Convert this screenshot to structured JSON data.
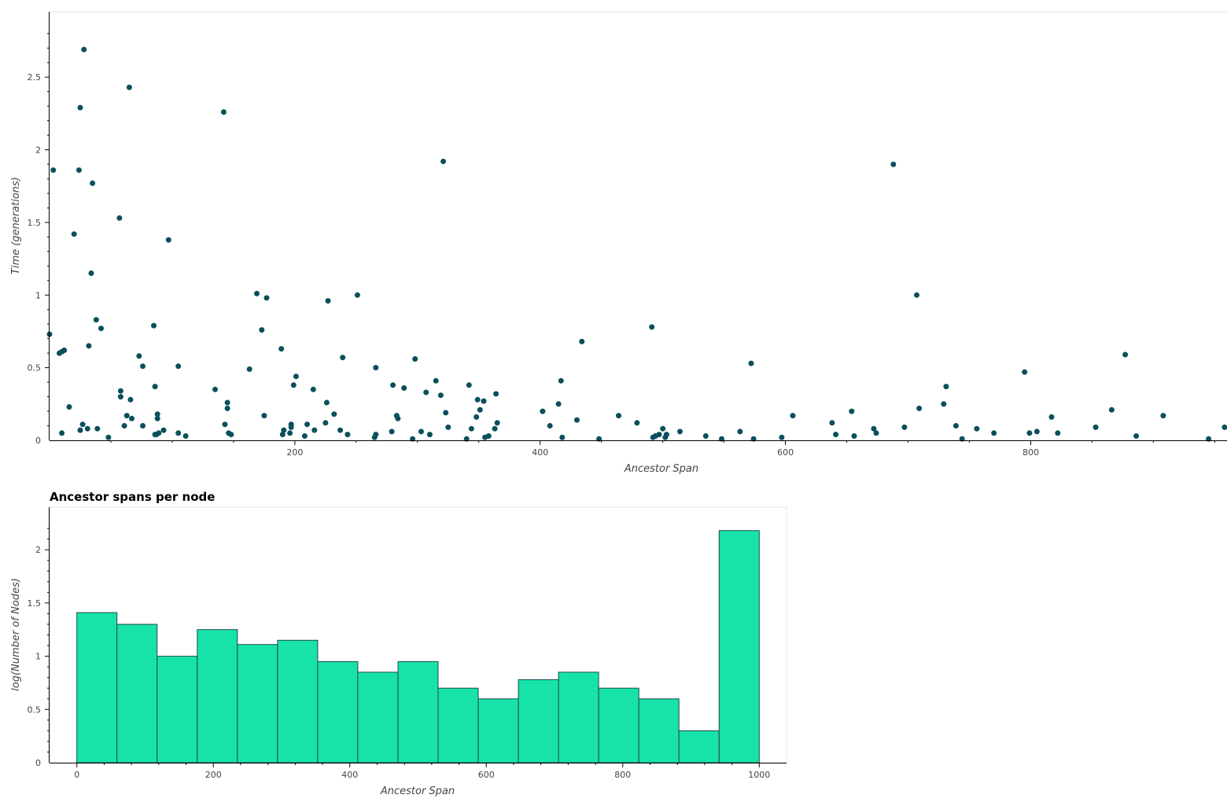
{
  "chart_data": [
    {
      "type": "scatter",
      "title": "",
      "xlabel": "Ancestor Span",
      "ylabel": "Time (generations)",
      "xlim": [
        0,
        960
      ],
      "ylim": [
        0,
        2.95
      ],
      "x_ticks": [
        200,
        400,
        600,
        800
      ],
      "y_ticks": [
        0,
        0.5,
        1,
        1.5,
        2,
        2.5
      ],
      "x_tick_labels": [
        "200",
        "400",
        "600",
        "800"
      ],
      "y_tick_labels": [
        "0",
        "0.5",
        "1",
        "1.5",
        "2",
        "2.5"
      ],
      "grid": false,
      "color": "#0b4f5c",
      "points": [
        [
          0,
          0.73
        ],
        [
          3,
          1.86
        ],
        [
          8,
          0.6
        ],
        [
          10,
          0.61
        ],
        [
          12,
          0.62
        ],
        [
          10,
          0.05
        ],
        [
          16,
          0.23
        ],
        [
          20,
          1.42
        ],
        [
          24,
          1.86
        ],
        [
          25,
          2.29
        ],
        [
          28,
          2.69
        ],
        [
          25,
          0.07
        ],
        [
          27,
          0.11
        ],
        [
          31,
          0.08
        ],
        [
          32,
          0.65
        ],
        [
          35,
          1.77
        ],
        [
          34,
          1.15
        ],
        [
          38,
          0.83
        ],
        [
          39,
          0.08
        ],
        [
          42,
          0.77
        ],
        [
          48,
          0.02
        ],
        [
          57,
          1.53
        ],
        [
          58,
          0.34
        ],
        [
          58,
          0.3
        ],
        [
          61,
          0.1
        ],
        [
          63,
          0.17
        ],
        [
          65,
          2.43
        ],
        [
          66,
          0.28
        ],
        [
          67,
          0.15
        ],
        [
          73,
          0.58
        ],
        [
          76,
          0.51
        ],
        [
          76,
          0.1
        ],
        [
          85,
          0.79
        ],
        [
          86,
          0.37
        ],
        [
          88,
          0.18
        ],
        [
          88,
          0.15
        ],
        [
          86,
          0.04
        ],
        [
          87,
          0.04
        ],
        [
          89,
          0.05
        ],
        [
          93,
          0.07
        ],
        [
          97,
          1.38
        ],
        [
          105,
          0.51
        ],
        [
          105,
          0.05
        ],
        [
          111,
          0.03
        ],
        [
          135,
          0.35
        ],
        [
          142,
          2.26
        ],
        [
          143,
          0.11
        ],
        [
          145,
          0.26
        ],
        [
          145,
          0.22
        ],
        [
          146,
          0.05
        ],
        [
          148,
          0.04
        ],
        [
          163,
          0.49
        ],
        [
          169,
          1.01
        ],
        [
          173,
          0.76
        ],
        [
          175,
          0.17
        ],
        [
          177,
          0.98
        ],
        [
          189,
          0.63
        ],
        [
          190,
          0.04
        ],
        [
          191,
          0.07
        ],
        [
          197,
          0.11
        ],
        [
          196,
          0.05
        ],
        [
          197,
          0.09
        ],
        [
          199,
          0.38
        ],
        [
          201,
          0.44
        ],
        [
          208,
          0.03
        ],
        [
          210,
          0.11
        ],
        [
          215,
          0.35
        ],
        [
          216,
          0.07
        ],
        [
          225,
          0.12
        ],
        [
          226,
          0.26
        ],
        [
          227,
          0.96
        ],
        [
          232,
          0.18
        ],
        [
          237,
          0.07
        ],
        [
          239,
          0.57
        ],
        [
          243,
          0.04
        ],
        [
          251,
          1.0
        ],
        [
          266,
          0.5
        ],
        [
          266,
          0.04
        ],
        [
          265,
          0.02
        ],
        [
          279,
          0.06
        ],
        [
          280,
          0.38
        ],
        [
          283,
          0.17
        ],
        [
          284,
          0.15
        ],
        [
          289,
          0.36
        ],
        [
          296,
          0.01
        ],
        [
          298,
          0.56
        ],
        [
          303,
          0.06
        ],
        [
          307,
          0.33
        ],
        [
          310,
          0.04
        ],
        [
          315,
          0.41
        ],
        [
          319,
          0.31
        ],
        [
          321,
          1.92
        ],
        [
          323,
          0.19
        ],
        [
          325,
          0.09
        ],
        [
          340,
          0.01
        ],
        [
          342,
          0.38
        ],
        [
          344,
          0.08
        ],
        [
          348,
          0.16
        ],
        [
          349,
          0.28
        ],
        [
          351,
          0.21
        ],
        [
          354,
          0.27
        ],
        [
          355,
          0.02
        ],
        [
          358,
          0.03
        ],
        [
          363,
          0.08
        ],
        [
          364,
          0.32
        ],
        [
          365,
          0.12
        ],
        [
          402,
          0.2
        ],
        [
          408,
          0.1
        ],
        [
          415,
          0.25
        ],
        [
          417,
          0.41
        ],
        [
          418,
          0.02
        ],
        [
          430,
          0.14
        ],
        [
          434,
          0.68
        ],
        [
          448,
          0.01
        ],
        [
          464,
          0.17
        ],
        [
          479,
          0.12
        ],
        [
          491,
          0.78
        ],
        [
          492,
          0.02
        ],
        [
          494,
          0.03
        ],
        [
          497,
          0.04
        ],
        [
          500,
          0.08
        ],
        [
          502,
          0.02
        ],
        [
          503,
          0.04
        ],
        [
          514,
          0.06
        ],
        [
          535,
          0.03
        ],
        [
          548,
          0.01
        ],
        [
          563,
          0.06
        ],
        [
          572,
          0.53
        ],
        [
          574,
          0.01
        ],
        [
          597,
          0.02
        ],
        [
          606,
          0.17
        ],
        [
          638,
          0.12
        ],
        [
          641,
          0.04
        ],
        [
          654,
          0.2
        ],
        [
          656,
          0.03
        ],
        [
          672,
          0.08
        ],
        [
          674,
          0.05
        ],
        [
          688,
          1.9
        ],
        [
          697,
          0.09
        ],
        [
          707,
          1.0
        ],
        [
          709,
          0.22
        ],
        [
          729,
          0.25
        ],
        [
          731,
          0.37
        ],
        [
          739,
          0.1
        ],
        [
          744,
          0.01
        ],
        [
          756,
          0.08
        ],
        [
          770,
          0.05
        ],
        [
          795,
          0.47
        ],
        [
          799,
          0.05
        ],
        [
          805,
          0.06
        ],
        [
          817,
          0.16
        ],
        [
          822,
          0.05
        ],
        [
          853,
          0.09
        ],
        [
          866,
          0.21
        ],
        [
          877,
          0.59
        ],
        [
          886,
          0.03
        ],
        [
          908,
          0.17
        ],
        [
          945,
          0.01
        ],
        [
          958,
          0.09
        ]
      ]
    },
    {
      "type": "bar",
      "title": "Ancestor spans per node",
      "xlabel": "Ancestor Span",
      "ylabel": "log(Number of Nodes)",
      "xlim": [
        -40,
        1040
      ],
      "ylim": [
        0,
        2.4
      ],
      "x_ticks": [
        0,
        200,
        400,
        600,
        800,
        1000
      ],
      "y_ticks": [
        0,
        0.5,
        1,
        1.5,
        2
      ],
      "x_tick_labels": [
        "0",
        "200",
        "400",
        "600",
        "800",
        "1000"
      ],
      "y_tick_labels": [
        "0",
        "0.5",
        "1",
        "1.5",
        "2"
      ],
      "grid": false,
      "color": "#17e3a8",
      "edge_color": "#1e4a52",
      "bin_edges": [
        0,
        58.82,
        117.65,
        176.47,
        235.29,
        294.12,
        352.94,
        411.76,
        470.59,
        529.41,
        588.24,
        647.06,
        705.88,
        764.71,
        823.53,
        882.35,
        941.18,
        1000
      ],
      "values": [
        1.41,
        1.3,
        1.0,
        1.25,
        1.11,
        1.15,
        0.95,
        0.85,
        0.95,
        0.7,
        0.6,
        0.78,
        0.85,
        0.7,
        0.6,
        0.3,
        2.18
      ]
    }
  ]
}
